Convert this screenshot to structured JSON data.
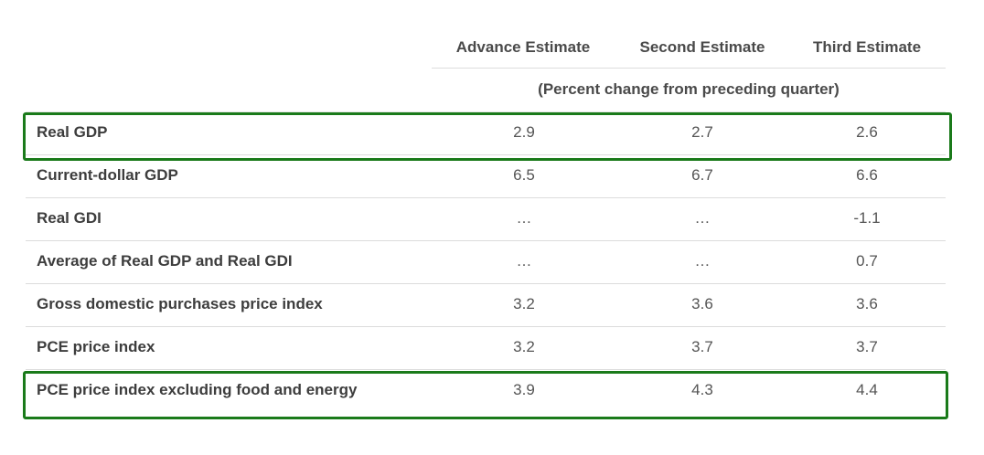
{
  "table": {
    "columns": [
      "Advance Estimate",
      "Second Estimate",
      "Third Estimate"
    ],
    "subheader": "(Percent change from preceding quarter)",
    "rows": [
      {
        "label": "Real GDP",
        "values": [
          "2.9",
          "2.7",
          "2.6"
        ],
        "highlighted": true
      },
      {
        "label": "Current-dollar GDP",
        "values": [
          "6.5",
          "6.7",
          "6.6"
        ],
        "highlighted": false
      },
      {
        "label": "Real GDI",
        "values": [
          "…",
          "…",
          "-1.1"
        ],
        "highlighted": false
      },
      {
        "label": "Average of Real GDP and Real GDI",
        "values": [
          "…",
          "…",
          "0.7"
        ],
        "highlighted": false
      },
      {
        "label": "Gross domestic purchases price index",
        "values": [
          "3.2",
          "3.6",
          "3.6"
        ],
        "highlighted": false
      },
      {
        "label": "PCE price index",
        "values": [
          "3.2",
          "3.7",
          "3.7"
        ],
        "highlighted": false
      },
      {
        "label": "PCE price index excluding food and energy",
        "values": [
          "3.9",
          "4.3",
          "4.4"
        ],
        "highlighted": true
      }
    ]
  },
  "colors": {
    "highlight_border": "#1a7a1a",
    "rule": "#dcdcdc",
    "text": "#3a3a3a"
  }
}
